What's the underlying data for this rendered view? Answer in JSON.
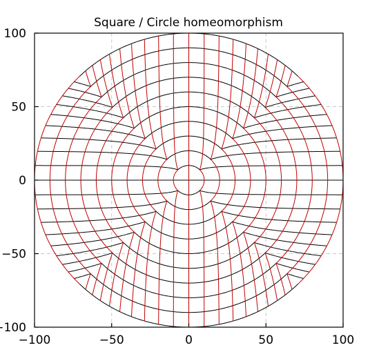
{
  "chart_data": {
    "type": "line",
    "title": "Square / Circle homeomorphism",
    "xlabel": "",
    "ylabel": "",
    "xlim": [
      -100,
      100
    ],
    "ylim": [
      -100,
      100
    ],
    "x_ticks": [
      -100,
      -50,
      0,
      50,
      100
    ],
    "y_ticks": [
      -100,
      -50,
      0,
      50,
      100
    ],
    "x_tick_labels": [
      "-100",
      "-50",
      "0",
      "50",
      "100"
    ],
    "y_tick_labels": [
      "-100",
      "-50",
      "0",
      "50",
      "100"
    ],
    "grid": "dashed at ticks",
    "legend": "none",
    "grid_lines": [
      -100,
      -90,
      -80,
      -70,
      -60,
      -50,
      -40,
      -30,
      -20,
      -10,
      0,
      10,
      20,
      30,
      40,
      50,
      60,
      70,
      80,
      90,
      100
    ],
    "series": [
      {
        "role": "horizontal",
        "color": "#000000"
      },
      {
        "role": "vertical",
        "color": "#c00000"
      }
    ],
    "axis_color": "#000000",
    "grid_color": "#c8c8c8"
  }
}
